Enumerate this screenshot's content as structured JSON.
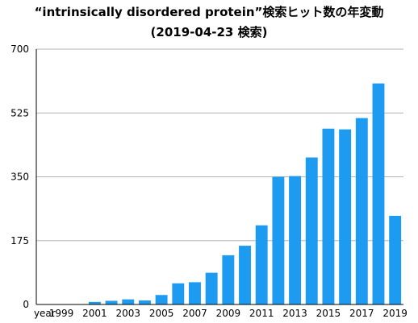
{
  "chart_data": {
    "type": "bar",
    "title": "“intrinsically disordered protein”検索ヒット数の年変動",
    "subtitle": "(2019-04-23 検索)",
    "xlabel": "",
    "ylabel": "",
    "categories": [
      "year",
      "1999",
      "2000",
      "2001",
      "2002",
      "2003",
      "2004",
      "2005",
      "2006",
      "2007",
      "2008",
      "2009",
      "2010",
      "2011",
      "2012",
      "2013",
      "2014",
      "2015",
      "2016",
      "2017",
      "2018",
      "2019"
    ],
    "x_tick_labels": [
      "year",
      "1999",
      "2001",
      "2003",
      "2005",
      "2007",
      "2009",
      "2011",
      "2013",
      "2015",
      "2017",
      "2019"
    ],
    "values": [
      0,
      0,
      0,
      7,
      10,
      14,
      11,
      26,
      58,
      61,
      87,
      135,
      161,
      217,
      350,
      352,
      403,
      482,
      480,
      511,
      606,
      243
    ],
    "ylim": [
      0,
      700
    ],
    "y_ticks": [
      0,
      175,
      350,
      525,
      700
    ],
    "grid": true,
    "bar_color": "#1d9bf0"
  }
}
